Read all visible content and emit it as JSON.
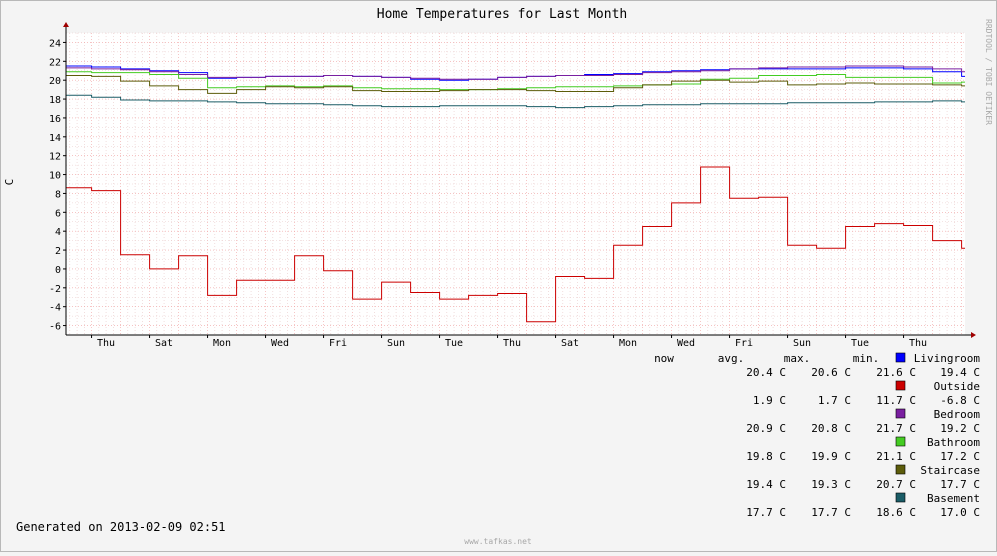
{
  "chart_data": {
    "type": "line",
    "title": "Home Temperatures for Last Month",
    "ylabel": "C",
    "ylim": [
      -7,
      25
    ],
    "yticks": [
      -6,
      -4,
      -2,
      0,
      2,
      4,
      6,
      8,
      10,
      12,
      14,
      16,
      18,
      20,
      22,
      24
    ],
    "xlim": [
      "2013-01-09 02:51",
      "2013-02-09 02:51"
    ],
    "xticks": [
      {
        "label": "Thu",
        "date": "2013-01-10"
      },
      {
        "label": "Sat",
        "date": "2013-01-12"
      },
      {
        "label": "Mon",
        "date": "2013-01-14"
      },
      {
        "label": "Wed",
        "date": "2013-01-16"
      },
      {
        "label": "Fri",
        "date": "2013-01-18"
      },
      {
        "label": "Sun",
        "date": "2013-01-20"
      },
      {
        "label": "Tue",
        "date": "2013-01-22"
      },
      {
        "label": "Thu",
        "date": "2013-01-24"
      },
      {
        "label": "Sat",
        "date": "2013-01-26"
      },
      {
        "label": "Mon",
        "date": "2013-01-28"
      },
      {
        "label": "Wed",
        "date": "2013-01-30"
      },
      {
        "label": "Fri",
        "date": "2013-02-01"
      },
      {
        "label": "Sun",
        "date": "2013-02-03"
      },
      {
        "label": "Tue",
        "date": "2013-02-05"
      },
      {
        "label": "Thu",
        "date": "2013-02-07"
      }
    ],
    "grid": true,
    "x": [
      "2013-01-09",
      "2013-01-10",
      "2013-01-11",
      "2013-01-12",
      "2013-01-13",
      "2013-01-14",
      "2013-01-15",
      "2013-01-16",
      "2013-01-17",
      "2013-01-18",
      "2013-01-19",
      "2013-01-20",
      "2013-01-21",
      "2013-01-22",
      "2013-01-23",
      "2013-01-24",
      "2013-01-25",
      "2013-01-26",
      "2013-01-27",
      "2013-01-28",
      "2013-01-29",
      "2013-01-30",
      "2013-01-31",
      "2013-02-01",
      "2013-02-02",
      "2013-02-03",
      "2013-02-04",
      "2013-02-05",
      "2013-02-06",
      "2013-02-07",
      "2013-02-08",
      "2013-02-09"
    ],
    "series": [
      {
        "name": "Livingroom",
        "color": "#0000ff",
        "values": [
          21.5,
          21.4,
          21.2,
          21.0,
          20.8,
          20.2,
          20.3,
          20.4,
          20.4,
          20.5,
          20.4,
          20.3,
          20.1,
          20.0,
          20.1,
          20.3,
          20.4,
          20.5,
          20.6,
          20.7,
          20.9,
          21.0,
          21.1,
          21.2,
          21.2,
          21.2,
          21.2,
          21.3,
          21.3,
          21.2,
          20.9,
          20.4
        ],
        "now": "20.4 C",
        "avg": "20.6 C",
        "max": "21.6 C",
        "min": "19.4 C"
      },
      {
        "name": "Outside",
        "color": "#cc0000",
        "values": [
          8.6,
          8.3,
          1.5,
          0.0,
          1.4,
          -2.8,
          -1.2,
          -1.2,
          1.4,
          -0.2,
          -3.2,
          -1.4,
          -2.5,
          -3.2,
          -2.8,
          -2.6,
          -5.6,
          -0.8,
          -1.0,
          2.5,
          4.5,
          7.0,
          10.8,
          7.5,
          7.6,
          2.5,
          2.2,
          4.5,
          4.8,
          4.6,
          3.0,
          2.2
        ],
        "now": "1.9 C",
        "avg": "1.7 C",
        "max": "11.7 C",
        "min": "-6.8 C"
      },
      {
        "name": "Bedroom",
        "color": "#7a1fa0",
        "values": [
          21.3,
          21.2,
          21.1,
          20.9,
          20.6,
          20.3,
          20.3,
          20.4,
          20.4,
          20.5,
          20.4,
          20.3,
          20.2,
          20.1,
          20.1,
          20.3,
          20.4,
          20.5,
          20.5,
          20.6,
          20.8,
          20.9,
          21.0,
          21.2,
          21.3,
          21.4,
          21.4,
          21.5,
          21.5,
          21.4,
          21.2,
          20.9
        ],
        "now": "20.9 C",
        "avg": "20.8 C",
        "max": "21.7 C",
        "min": "19.2 C"
      },
      {
        "name": "Bathroom",
        "color": "#44cc22",
        "values": [
          20.9,
          20.8,
          20.8,
          20.6,
          20.2,
          19.2,
          19.3,
          19.4,
          19.3,
          19.4,
          19.2,
          19.1,
          19.1,
          19.0,
          19.0,
          19.1,
          19.2,
          19.3,
          19.3,
          19.4,
          19.5,
          19.6,
          20.1,
          20.2,
          20.5,
          20.5,
          20.6,
          20.3,
          20.3,
          20.3,
          19.7,
          19.8
        ],
        "now": "19.8 C",
        "avg": "19.9 C",
        "max": "21.1 C",
        "min": "17.2 C"
      },
      {
        "name": "Staircase",
        "color": "#5c5c0a",
        "values": [
          20.5,
          20.4,
          19.9,
          19.4,
          19.0,
          18.6,
          19.0,
          19.3,
          19.2,
          19.3,
          18.9,
          18.8,
          18.8,
          18.9,
          19.0,
          19.0,
          18.9,
          18.8,
          18.8,
          19.2,
          19.5,
          19.9,
          20.0,
          19.8,
          19.9,
          19.5,
          19.6,
          19.7,
          19.6,
          19.6,
          19.5,
          19.4
        ],
        "now": "19.4 C",
        "avg": "19.3 C",
        "max": "20.7 C",
        "min": "17.7 C"
      },
      {
        "name": "Basement",
        "color": "#1a5c66",
        "values": [
          18.4,
          18.2,
          17.9,
          17.8,
          17.8,
          17.7,
          17.6,
          17.5,
          17.5,
          17.4,
          17.3,
          17.2,
          17.2,
          17.3,
          17.3,
          17.3,
          17.2,
          17.1,
          17.2,
          17.3,
          17.4,
          17.4,
          17.5,
          17.5,
          17.5,
          17.6,
          17.6,
          17.6,
          17.7,
          17.7,
          17.8,
          17.7
        ],
        "now": "17.7 C",
        "avg": "17.7 C",
        "max": "18.6 C",
        "min": "17.0 C"
      }
    ]
  },
  "legend": {
    "col_now": "now",
    "col_avg": "avg.",
    "col_max": "max.",
    "col_min": "min."
  },
  "footer": {
    "generated": "Generated on 2013-02-09 02:51",
    "watermark": "www.tafkas.net"
  },
  "side_credit": "RRDTOOL / TOBI OETIKER"
}
